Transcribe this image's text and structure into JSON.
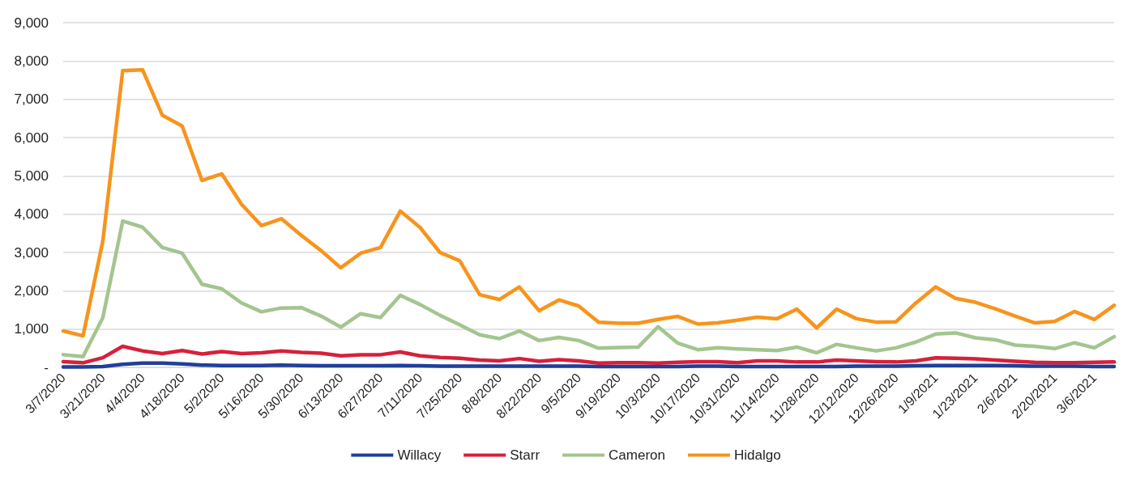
{
  "chart_data": {
    "type": "line",
    "categories": [
      "3/7/2020",
      null,
      "3/21/2020",
      null,
      "4/4/2020",
      null,
      "4/18/2020",
      null,
      "5/2/2020",
      null,
      "5/16/2020",
      null,
      "5/30/2020",
      null,
      "6/13/2020",
      null,
      "6/27/2020",
      null,
      "7/11/2020",
      null,
      "7/25/2020",
      null,
      "8/8/2020",
      null,
      "8/22/2020",
      null,
      "9/5/2020",
      null,
      "9/19/2020",
      null,
      "10/3/2020",
      null,
      "10/17/2020",
      null,
      "10/31/2020",
      null,
      "11/14/2020",
      null,
      "11/28/2020",
      null,
      "12/12/2020",
      null,
      "12/26/2020",
      null,
      "1/9/2021",
      null,
      "1/23/2021",
      null,
      "2/6/2021",
      null,
      "2/20/2021",
      null,
      "3/6/2021",
      null
    ],
    "series": [
      {
        "name": "Willacy",
        "color": "#203f99",
        "values": [
          10,
          10,
          20,
          80,
          110,
          110,
          90,
          60,
          50,
          50,
          50,
          60,
          50,
          40,
          40,
          40,
          40,
          50,
          40,
          30,
          30,
          30,
          30,
          30,
          30,
          30,
          30,
          20,
          20,
          20,
          20,
          20,
          30,
          30,
          20,
          20,
          20,
          20,
          20,
          20,
          30,
          30,
          30,
          40,
          50,
          50,
          50,
          50,
          40,
          30,
          30,
          30,
          20,
          20
        ]
      },
      {
        "name": "Starr",
        "color": "#d7203a",
        "values": [
          150,
          120,
          250,
          550,
          430,
          360,
          440,
          350,
          410,
          360,
          380,
          430,
          390,
          370,
          300,
          330,
          330,
          400,
          300,
          260,
          240,
          190,
          170,
          230,
          160,
          200,
          170,
          110,
          120,
          120,
          110,
          130,
          150,
          150,
          120,
          170,
          170,
          140,
          140,
          190,
          170,
          150,
          140,
          170,
          250,
          240,
          220,
          190,
          160,
          130,
          120,
          120,
          130,
          140
        ]
      },
      {
        "name": "Cameron",
        "color": "#a3c58f",
        "values": [
          330,
          280,
          1300,
          3820,
          3660,
          3130,
          2980,
          2170,
          2050,
          1680,
          1450,
          1550,
          1560,
          1340,
          1050,
          1400,
          1300,
          1880,
          1640,
          1360,
          1110,
          850,
          750,
          950,
          700,
          780,
          700,
          500,
          520,
          530,
          1060,
          630,
          460,
          510,
          480,
          460,
          440,
          530,
          380,
          600,
          510,
          430,
          510,
          660,
          870,
          900,
          770,
          720,
          580,
          550,
          490,
          640,
          510,
          800
        ]
      },
      {
        "name": "Hidalgo",
        "color": "#f7941d",
        "values": [
          950,
          820,
          3300,
          7750,
          7770,
          6580,
          6300,
          4880,
          5050,
          4250,
          3700,
          3880,
          3450,
          3050,
          2600,
          2980,
          3130,
          4080,
          3650,
          3000,
          2780,
          1900,
          1770,
          2100,
          1480,
          1760,
          1600,
          1180,
          1150,
          1150,
          1250,
          1330,
          1130,
          1160,
          1230,
          1310,
          1270,
          1520,
          1030,
          1520,
          1270,
          1180,
          1190,
          1680,
          2100,
          1800,
          1700,
          1530,
          1340,
          1160,
          1200,
          1460,
          1250,
          1620
        ]
      }
    ],
    "ylim": [
      0,
      9000
    ],
    "yticks": [
      {
        "value": 0,
        "label": "-"
      },
      {
        "value": 1000,
        "label": "1,000"
      },
      {
        "value": 2000,
        "label": "2,000"
      },
      {
        "value": 3000,
        "label": "3,000"
      },
      {
        "value": 4000,
        "label": "4,000"
      },
      {
        "value": 5000,
        "label": "5,000"
      },
      {
        "value": 6000,
        "label": "6,000"
      },
      {
        "value": 7000,
        "label": "7,000"
      },
      {
        "value": 8000,
        "label": "8,000"
      },
      {
        "value": 9000,
        "label": "9,000"
      }
    ],
    "grid": "y",
    "legend": "bottom",
    "marker": "none",
    "line_style": "solid"
  }
}
